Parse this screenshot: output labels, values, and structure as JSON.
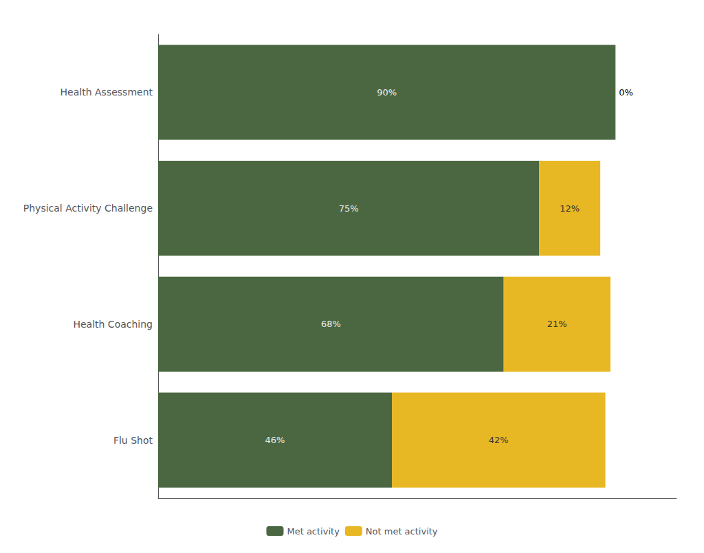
{
  "chart_data": {
    "type": "bar",
    "orientation": "horizontal",
    "stacked": true,
    "categories": [
      "Flu Shot",
      "Health Coaching",
      "Physical Activity Challenge",
      "Health Assessment"
    ],
    "series": [
      {
        "name": "Met activity",
        "color": "#4a6741",
        "values": [
          46,
          68,
          75,
          90
        ],
        "value_labels": [
          "46%",
          "68%",
          "75%",
          "90%"
        ]
      },
      {
        "name": "Not met activity",
        "color": "#e8b824",
        "values": [
          42,
          21,
          12,
          0
        ],
        "value_labels": [
          "42%",
          "21%",
          "12%",
          "0%"
        ]
      }
    ],
    "xlim": [
      0,
      102
    ],
    "data_labels": true,
    "tick_labels": "y",
    "grid": false,
    "legend": "bottom"
  }
}
